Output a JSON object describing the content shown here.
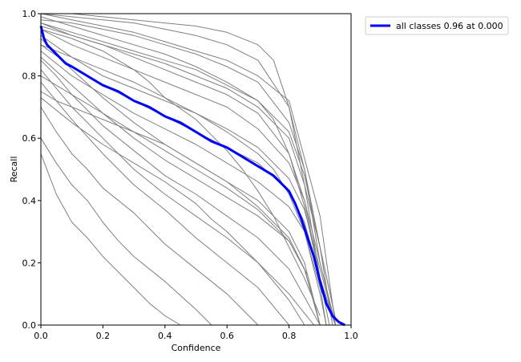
{
  "chart_data": {
    "type": "line",
    "xlabel": "Confidence",
    "ylabel": "Recall",
    "xlim": [
      0,
      1
    ],
    "ylim": [
      0,
      1
    ],
    "x_ticks": [
      "0.0",
      "0.2",
      "0.4",
      "0.6",
      "0.8",
      "1.0"
    ],
    "y_ticks": [
      "0.0",
      "0.2",
      "0.4",
      "0.6",
      "0.8",
      "1.0"
    ],
    "grid": false,
    "legend": {
      "position": "outside-top-right",
      "entries": [
        "all classes 0.96 at 0.000"
      ]
    },
    "colors": {
      "class_curves": "#808080",
      "all_classes": "#0000ff"
    },
    "series": [
      {
        "name": "all classes 0.96 at 0.000",
        "highlight": true,
        "x": [
          0.0,
          0.01,
          0.02,
          0.04,
          0.06,
          0.08,
          0.1,
          0.15,
          0.2,
          0.25,
          0.3,
          0.35,
          0.4,
          0.45,
          0.5,
          0.55,
          0.6,
          0.65,
          0.7,
          0.75,
          0.78,
          0.8,
          0.82,
          0.84,
          0.86,
          0.88,
          0.9,
          0.92,
          0.94,
          0.96,
          0.98
        ],
        "y": [
          0.96,
          0.92,
          0.9,
          0.88,
          0.86,
          0.84,
          0.83,
          0.8,
          0.77,
          0.75,
          0.72,
          0.7,
          0.67,
          0.65,
          0.62,
          0.59,
          0.57,
          0.54,
          0.51,
          0.48,
          0.45,
          0.43,
          0.39,
          0.34,
          0.28,
          0.22,
          0.14,
          0.07,
          0.03,
          0.01,
          0.0
        ]
      },
      {
        "x": [
          0.0,
          0.1,
          0.2,
          0.3,
          0.4,
          0.5,
          0.6,
          0.7,
          0.75,
          0.8,
          0.85,
          0.9,
          0.95
        ],
        "y": [
          1.0,
          1.0,
          0.99,
          0.98,
          0.97,
          0.96,
          0.94,
          0.9,
          0.85,
          0.7,
          0.45,
          0.15,
          0.0
        ]
      },
      {
        "x": [
          0.0,
          0.1,
          0.2,
          0.3,
          0.4,
          0.5,
          0.6,
          0.7,
          0.8,
          0.85,
          0.9,
          0.95
        ],
        "y": [
          1.0,
          0.99,
          0.98,
          0.97,
          0.95,
          0.93,
          0.9,
          0.85,
          0.7,
          0.5,
          0.2,
          0.0
        ]
      },
      {
        "x": [
          0.0,
          0.1,
          0.2,
          0.3,
          0.4,
          0.5,
          0.6,
          0.7,
          0.8,
          0.85,
          0.9,
          0.95
        ],
        "y": [
          0.98,
          0.97,
          0.95,
          0.93,
          0.9,
          0.87,
          0.83,
          0.78,
          0.65,
          0.5,
          0.25,
          0.02
        ]
      },
      {
        "x": [
          0.0,
          0.1,
          0.2,
          0.3,
          0.4,
          0.5,
          0.6,
          0.7,
          0.8,
          0.85,
          0.9,
          0.95
        ],
        "y": [
          0.97,
          0.93,
          0.9,
          0.87,
          0.84,
          0.8,
          0.76,
          0.7,
          0.6,
          0.45,
          0.25,
          0.02
        ]
      },
      {
        "x": [
          0.0,
          0.1,
          0.2,
          0.3,
          0.4,
          0.5,
          0.6,
          0.7,
          0.8,
          0.85,
          0.9,
          0.95
        ],
        "y": [
          0.95,
          0.9,
          0.86,
          0.82,
          0.78,
          0.74,
          0.7,
          0.63,
          0.52,
          0.4,
          0.2,
          0.0
        ]
      },
      {
        "x": [
          0.0,
          0.1,
          0.2,
          0.3,
          0.4,
          0.5,
          0.6,
          0.7,
          0.8,
          0.85,
          0.9,
          0.95
        ],
        "y": [
          0.93,
          0.86,
          0.8,
          0.76,
          0.72,
          0.68,
          0.63,
          0.57,
          0.47,
          0.37,
          0.18,
          0.0
        ]
      },
      {
        "x": [
          0.0,
          0.1,
          0.2,
          0.3,
          0.4,
          0.5,
          0.6,
          0.7,
          0.8,
          0.85,
          0.9,
          0.95
        ],
        "y": [
          0.9,
          0.83,
          0.77,
          0.72,
          0.67,
          0.62,
          0.57,
          0.52,
          0.43,
          0.33,
          0.15,
          0.0
        ]
      },
      {
        "x": [
          0.0,
          0.1,
          0.2,
          0.3,
          0.4,
          0.5,
          0.6,
          0.7,
          0.8,
          0.85,
          0.9,
          0.95
        ],
        "y": [
          0.88,
          0.8,
          0.74,
          0.68,
          0.63,
          0.58,
          0.52,
          0.46,
          0.38,
          0.3,
          0.12,
          0.0
        ]
      },
      {
        "x": [
          0.0,
          0.1,
          0.2,
          0.3,
          0.4,
          0.5,
          0.6,
          0.7,
          0.8,
          0.85,
          0.9
        ],
        "y": [
          0.92,
          0.82,
          0.73,
          0.65,
          0.58,
          0.52,
          0.46,
          0.4,
          0.3,
          0.2,
          0.0
        ]
      },
      {
        "x": [
          0.0,
          0.1,
          0.2,
          0.3,
          0.4,
          0.5,
          0.6,
          0.7,
          0.8,
          0.85,
          0.9
        ],
        "y": [
          0.86,
          0.77,
          0.68,
          0.6,
          0.53,
          0.47,
          0.41,
          0.35,
          0.27,
          0.18,
          0.0
        ]
      },
      {
        "x": [
          0.0,
          0.05,
          0.1,
          0.2,
          0.3,
          0.4,
          0.5,
          0.6,
          0.7,
          0.8,
          0.9
        ],
        "y": [
          0.85,
          0.8,
          0.74,
          0.64,
          0.56,
          0.48,
          0.42,
          0.35,
          0.28,
          0.18,
          0.0
        ]
      },
      {
        "x": [
          0.0,
          0.05,
          0.1,
          0.2,
          0.3,
          0.4,
          0.5,
          0.6,
          0.7,
          0.8,
          0.88
        ],
        "y": [
          0.82,
          0.76,
          0.7,
          0.6,
          0.5,
          0.42,
          0.35,
          0.28,
          0.2,
          0.1,
          0.0
        ]
      },
      {
        "x": [
          0.0,
          0.05,
          0.1,
          0.2,
          0.3,
          0.4,
          0.5,
          0.6,
          0.7,
          0.8
        ],
        "y": [
          0.78,
          0.72,
          0.66,
          0.55,
          0.45,
          0.37,
          0.28,
          0.2,
          0.12,
          0.0
        ]
      },
      {
        "x": [
          0.0,
          0.05,
          0.1,
          0.15,
          0.2,
          0.3,
          0.4,
          0.5,
          0.6,
          0.7
        ],
        "y": [
          0.7,
          0.62,
          0.55,
          0.5,
          0.44,
          0.36,
          0.26,
          0.18,
          0.1,
          0.0
        ]
      },
      {
        "x": [
          0.0,
          0.05,
          0.1,
          0.15,
          0.2,
          0.25,
          0.3,
          0.4,
          0.5,
          0.55
        ],
        "y": [
          0.6,
          0.52,
          0.45,
          0.4,
          0.33,
          0.27,
          0.22,
          0.14,
          0.05,
          0.0
        ]
      },
      {
        "x": [
          0.0,
          0.05,
          0.1,
          0.15,
          0.2,
          0.25,
          0.3,
          0.35,
          0.4,
          0.45
        ],
        "y": [
          0.55,
          0.42,
          0.33,
          0.28,
          0.22,
          0.17,
          0.12,
          0.07,
          0.03,
          0.0
        ]
      },
      {
        "x": [
          0.0,
          0.1,
          0.2,
          0.3,
          0.35,
          0.4,
          0.5,
          0.6,
          0.65,
          0.7,
          0.75,
          0.8,
          0.85,
          0.9
        ],
        "y": [
          0.95,
          0.92,
          0.88,
          0.82,
          0.78,
          0.73,
          0.66,
          0.56,
          0.5,
          0.43,
          0.35,
          0.25,
          0.15,
          0.03
        ]
      },
      {
        "x": [
          0.0,
          0.1,
          0.2,
          0.3,
          0.4,
          0.5,
          0.6,
          0.7,
          0.75,
          0.8,
          0.85,
          0.9,
          0.93
        ],
        "y": [
          0.99,
          0.96,
          0.93,
          0.9,
          0.87,
          0.83,
          0.78,
          0.72,
          0.66,
          0.55,
          0.38,
          0.15,
          0.0
        ]
      },
      {
        "x": [
          0.0,
          0.1,
          0.2,
          0.3,
          0.4,
          0.5,
          0.6,
          0.7,
          0.8,
          0.85,
          0.88,
          0.92
        ],
        "y": [
          0.96,
          0.93,
          0.9,
          0.86,
          0.82,
          0.78,
          0.74,
          0.68,
          0.55,
          0.4,
          0.25,
          0.0
        ]
      },
      {
        "x": [
          0.0,
          0.1,
          0.2,
          0.3,
          0.4,
          0.5,
          0.6,
          0.7,
          0.75,
          0.8,
          0.85,
          0.9,
          0.92
        ],
        "y": [
          0.9,
          0.86,
          0.82,
          0.78,
          0.73,
          0.68,
          0.62,
          0.55,
          0.5,
          0.42,
          0.3,
          0.1,
          0.0
        ]
      },
      {
        "x": [
          0.0,
          0.05,
          0.1,
          0.2,
          0.3,
          0.4,
          0.5,
          0.6,
          0.7,
          0.8,
          0.85,
          0.9
        ],
        "y": [
          0.75,
          0.72,
          0.7,
          0.66,
          0.62,
          0.58,
          0.52,
          0.46,
          0.38,
          0.28,
          0.18,
          0.0
        ]
      },
      {
        "x": [
          0.0,
          0.1,
          0.2,
          0.3,
          0.4,
          0.5,
          0.55,
          0.6,
          0.7,
          0.8,
          0.85
        ],
        "y": [
          0.73,
          0.65,
          0.58,
          0.52,
          0.46,
          0.39,
          0.34,
          0.3,
          0.2,
          0.08,
          0.0
        ]
      },
      {
        "x": [
          0.0,
          0.1,
          0.2,
          0.3,
          0.4,
          0.5,
          0.6,
          0.7,
          0.8,
          0.9,
          0.95
        ],
        "y": [
          1.0,
          0.98,
          0.96,
          0.94,
          0.91,
          0.88,
          0.85,
          0.8,
          0.72,
          0.35,
          0.0
        ]
      },
      {
        "x": [
          0.0,
          0.1,
          0.2,
          0.3,
          0.4,
          0.5,
          0.6,
          0.7,
          0.8,
          0.85,
          0.9,
          0.94
        ],
        "y": [
          0.97,
          0.94,
          0.91,
          0.88,
          0.85,
          0.82,
          0.77,
          0.72,
          0.62,
          0.48,
          0.25,
          0.0
        ]
      },
      {
        "x": [
          0.0,
          0.1,
          0.2,
          0.3,
          0.4,
          0.5,
          0.6,
          0.7,
          0.8,
          0.86,
          0.9
        ],
        "y": [
          0.8,
          0.74,
          0.68,
          0.62,
          0.56,
          0.5,
          0.44,
          0.37,
          0.27,
          0.16,
          0.0
        ]
      }
    ]
  }
}
